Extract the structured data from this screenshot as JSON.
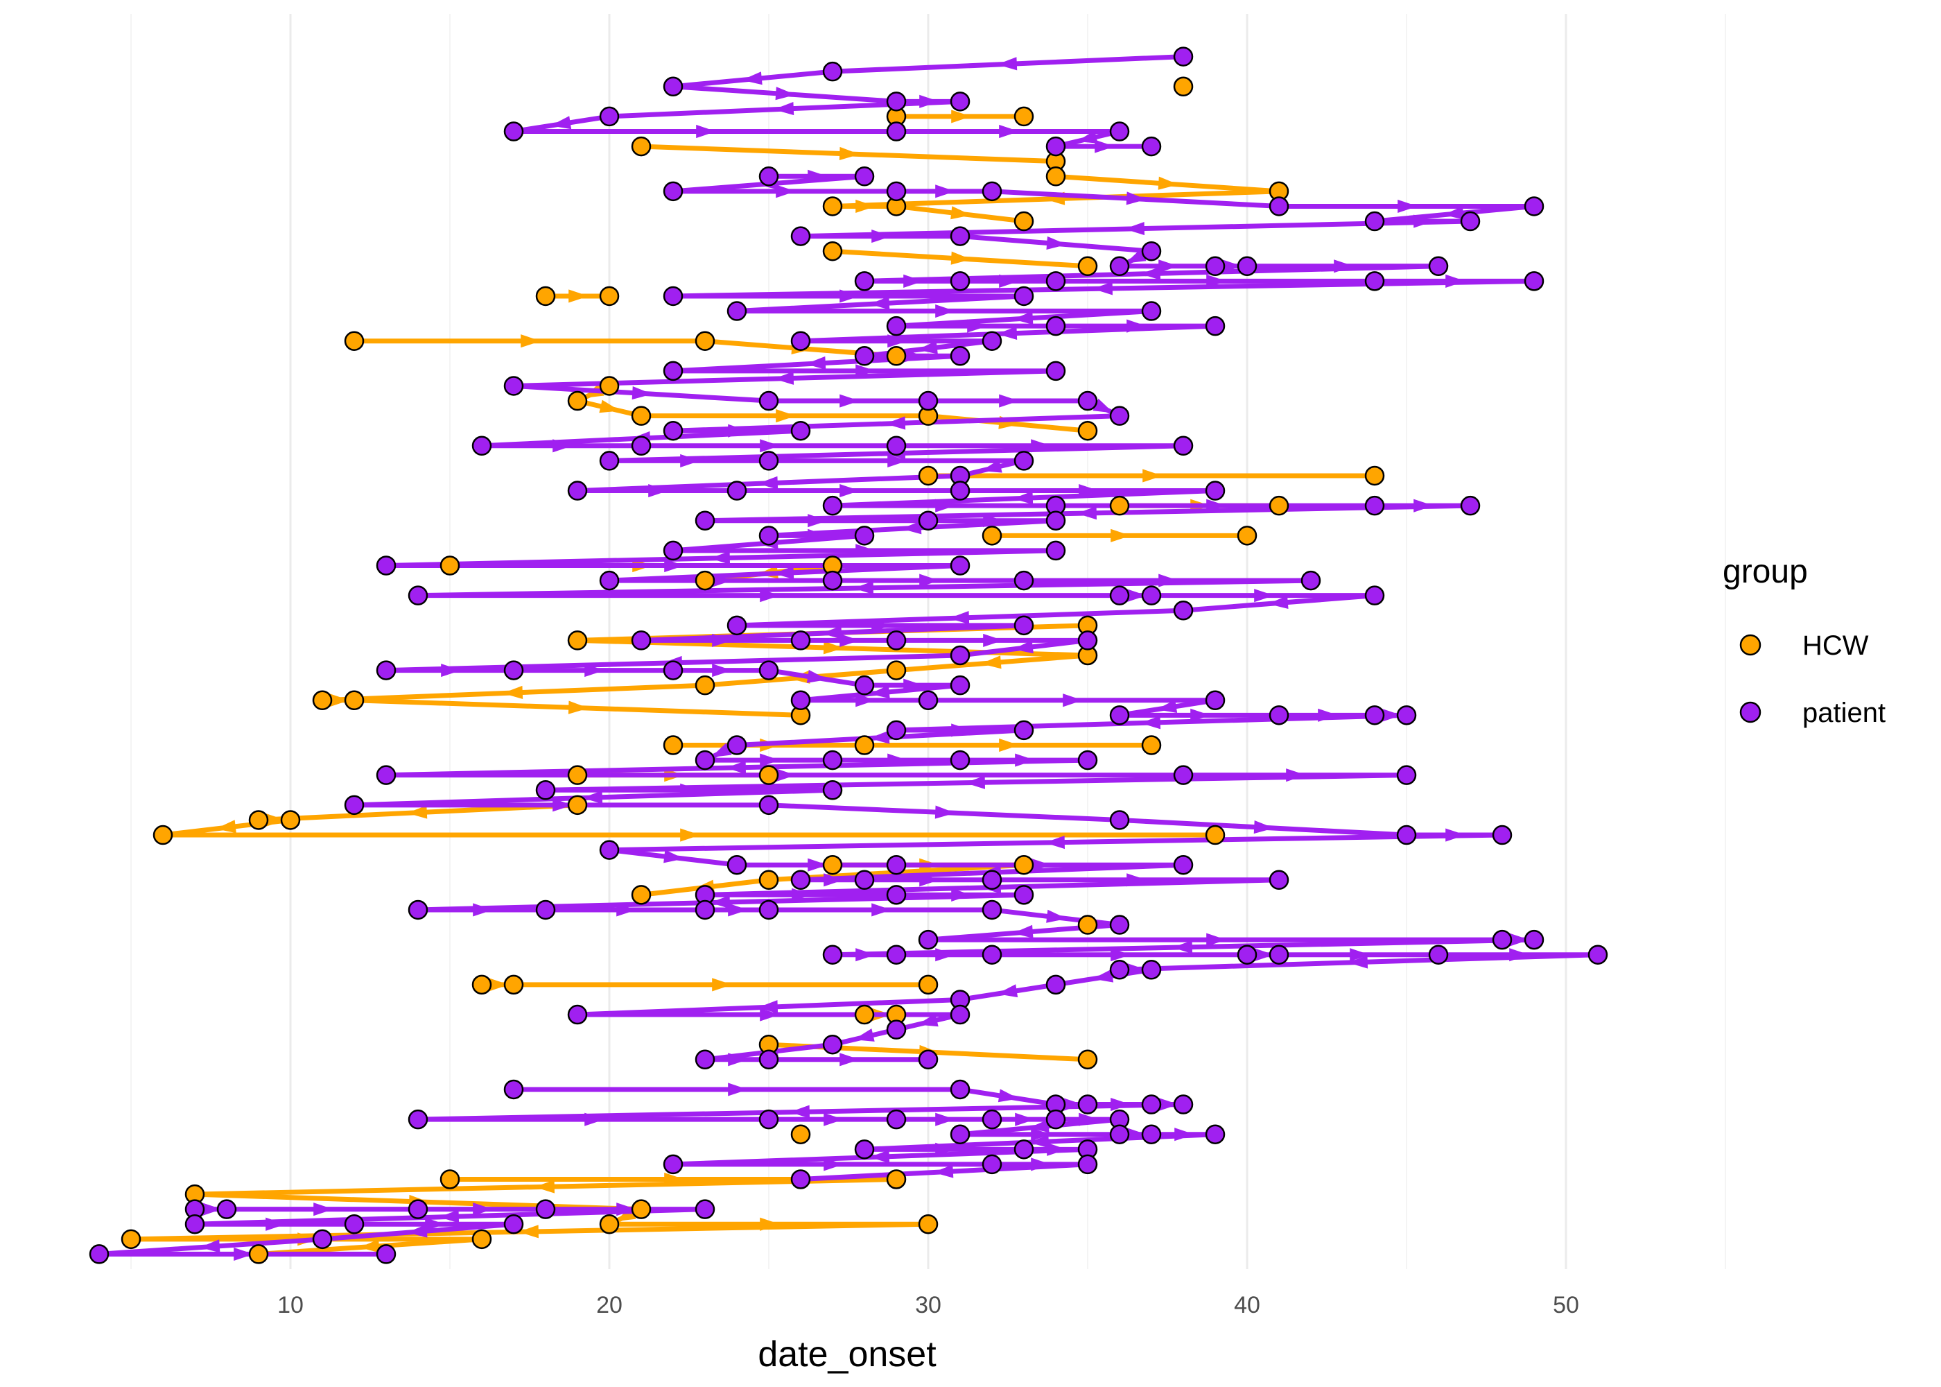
{
  "chart_data": {
    "type": "scatter",
    "title": "",
    "xlabel": "date_onset",
    "ylabel": "",
    "xlim": [
      3.5,
      53.5
    ],
    "x_ticks": [
      10,
      20,
      30,
      40,
      50
    ],
    "grid": true,
    "legend": {
      "title": "group",
      "placement": "right",
      "entries": [
        {
          "label": "HCW",
          "color": "#FFA500"
        },
        {
          "label": "patient",
          "color": "#A020F0"
        }
      ]
    },
    "colors": {
      "HCW": "#FFA500",
      "patient": "#A020F0"
    },
    "series": [
      {
        "name": "HCW",
        "points": [
          [
            38,
            3
          ],
          [
            29,
            5
          ],
          [
            33,
            5
          ],
          [
            21,
            7
          ],
          [
            34,
            8
          ],
          [
            34,
            9
          ],
          [
            41,
            10
          ],
          [
            29,
            11
          ],
          [
            27,
            11
          ],
          [
            33,
            12
          ],
          [
            27,
            14
          ],
          [
            35,
            15
          ],
          [
            20,
            17
          ],
          [
            18,
            17
          ],
          [
            12,
            20
          ],
          [
            23,
            20
          ],
          [
            29,
            21
          ],
          [
            20,
            23
          ],
          [
            19,
            24
          ],
          [
            30,
            25
          ],
          [
            21,
            25
          ],
          [
            35,
            26
          ],
          [
            30,
            29
          ],
          [
            44,
            29
          ],
          [
            36,
            31
          ],
          [
            41,
            31
          ],
          [
            32,
            33
          ],
          [
            40,
            33
          ],
          [
            27,
            35
          ],
          [
            15,
            35
          ],
          [
            23,
            36
          ],
          [
            35,
            39
          ],
          [
            19,
            40
          ],
          [
            35,
            41
          ],
          [
            29,
            42
          ],
          [
            23,
            43
          ],
          [
            11,
            44
          ],
          [
            12,
            44
          ],
          [
            26,
            45
          ],
          [
            22,
            47
          ],
          [
            28,
            47
          ],
          [
            37,
            47
          ],
          [
            19,
            49
          ],
          [
            25,
            49
          ],
          [
            19,
            51
          ],
          [
            6,
            53
          ],
          [
            9,
            52
          ],
          [
            10,
            52
          ],
          [
            39,
            53
          ],
          [
            27,
            55
          ],
          [
            25,
            56
          ],
          [
            21,
            57
          ],
          [
            33,
            55
          ],
          [
            35,
            59
          ],
          [
            16,
            63
          ],
          [
            17,
            63
          ],
          [
            30,
            63
          ],
          [
            28,
            65
          ],
          [
            29,
            65
          ],
          [
            25,
            67
          ],
          [
            35,
            68
          ],
          [
            26,
            73
          ],
          [
            7,
            77
          ],
          [
            15,
            76
          ],
          [
            29,
            76
          ],
          [
            21,
            78
          ],
          [
            20,
            79
          ],
          [
            30,
            79
          ],
          [
            5,
            80
          ],
          [
            16,
            80
          ],
          [
            9,
            81
          ]
        ]
      },
      {
        "name": "patient",
        "points": [
          [
            22,
            3
          ],
          [
            27,
            2
          ],
          [
            38,
            1
          ],
          [
            20,
            5
          ],
          [
            29,
            6
          ],
          [
            31,
            4
          ],
          [
            17,
            6
          ],
          [
            29,
            4
          ],
          [
            36,
            6
          ],
          [
            37,
            7
          ],
          [
            34,
            7
          ],
          [
            25,
            9
          ],
          [
            28,
            9
          ],
          [
            22,
            10
          ],
          [
            29,
            10
          ],
          [
            32,
            10
          ],
          [
            41,
            11
          ],
          [
            44,
            12
          ],
          [
            49,
            11
          ],
          [
            47,
            12
          ],
          [
            37,
            14
          ],
          [
            31,
            13
          ],
          [
            26,
            13
          ],
          [
            39,
            15
          ],
          [
            36,
            15
          ],
          [
            34,
            16
          ],
          [
            46,
            15
          ],
          [
            28,
            16
          ],
          [
            31,
            16
          ],
          [
            22,
            17
          ],
          [
            24,
            18
          ],
          [
            33,
            17
          ],
          [
            37,
            18
          ],
          [
            29,
            19
          ],
          [
            34,
            19
          ],
          [
            39,
            19
          ],
          [
            26,
            20
          ],
          [
            31,
            21
          ],
          [
            28,
            21
          ],
          [
            32,
            20
          ],
          [
            49,
            16
          ],
          [
            44,
            16
          ],
          [
            40,
            15
          ],
          [
            17,
            23
          ],
          [
            22,
            22
          ],
          [
            25,
            24
          ],
          [
            30,
            24
          ],
          [
            34,
            22
          ],
          [
            35,
            24
          ],
          [
            36,
            25
          ],
          [
            22,
            26
          ],
          [
            16,
            27
          ],
          [
            21,
            27
          ],
          [
            25,
            28
          ],
          [
            26,
            26
          ],
          [
            29,
            27
          ],
          [
            33,
            28
          ],
          [
            38,
            27
          ],
          [
            20,
            28
          ],
          [
            31,
            29
          ],
          [
            19,
            30
          ],
          [
            24,
            30
          ],
          [
            27,
            31
          ],
          [
            31,
            30
          ],
          [
            34,
            31
          ],
          [
            39,
            30
          ],
          [
            44,
            31
          ],
          [
            47,
            31
          ],
          [
            23,
            32
          ],
          [
            28,
            33
          ],
          [
            30,
            32
          ],
          [
            34,
            32
          ],
          [
            22,
            34
          ],
          [
            25,
            33
          ],
          [
            31,
            35
          ],
          [
            34,
            34
          ],
          [
            13,
            35
          ],
          [
            20,
            36
          ],
          [
            14,
            37
          ],
          [
            36,
            37
          ],
          [
            27,
            36
          ],
          [
            33,
            36
          ],
          [
            38,
            38
          ],
          [
            44,
            37
          ],
          [
            42,
            36
          ],
          [
            37,
            37
          ],
          [
            24,
            39
          ],
          [
            29,
            40
          ],
          [
            33,
            39
          ],
          [
            26,
            40
          ],
          [
            21,
            40
          ],
          [
            31,
            41
          ],
          [
            35,
            40
          ],
          [
            13,
            42
          ],
          [
            17,
            42
          ],
          [
            22,
            42
          ],
          [
            25,
            42
          ],
          [
            31,
            43
          ],
          [
            28,
            43
          ],
          [
            30,
            44
          ],
          [
            26,
            44
          ],
          [
            39,
            44
          ],
          [
            41,
            45
          ],
          [
            44,
            45
          ],
          [
            45,
            45
          ],
          [
            33,
            46
          ],
          [
            36,
            45
          ],
          [
            29,
            46
          ],
          [
            24,
            47
          ],
          [
            23,
            48
          ],
          [
            27,
            48
          ],
          [
            31,
            48
          ],
          [
            35,
            48
          ],
          [
            38,
            49
          ],
          [
            45,
            49
          ],
          [
            13,
            49
          ],
          [
            27,
            50
          ],
          [
            25,
            51
          ],
          [
            12,
            51
          ],
          [
            18,
            50
          ],
          [
            36,
            52
          ],
          [
            45,
            53
          ],
          [
            48,
            53
          ],
          [
            20,
            54
          ],
          [
            29,
            55
          ],
          [
            24,
            55
          ],
          [
            23,
            57
          ],
          [
            26,
            56
          ],
          [
            28,
            56
          ],
          [
            32,
            56
          ],
          [
            38,
            55
          ],
          [
            41,
            56
          ],
          [
            33,
            57
          ],
          [
            23,
            58
          ],
          [
            29,
            57
          ],
          [
            14,
            58
          ],
          [
            18,
            58
          ],
          [
            25,
            58
          ],
          [
            32,
            58
          ],
          [
            36,
            59
          ],
          [
            30,
            60
          ],
          [
            27,
            61
          ],
          [
            29,
            61
          ],
          [
            32,
            61
          ],
          [
            40,
            61
          ],
          [
            41,
            61
          ],
          [
            46,
            61
          ],
          [
            48,
            60
          ],
          [
            49,
            60
          ],
          [
            51,
            61
          ],
          [
            36,
            62
          ],
          [
            37,
            62
          ],
          [
            34,
            63
          ],
          [
            19,
            65
          ],
          [
            31,
            64
          ],
          [
            31,
            65
          ],
          [
            29,
            66
          ],
          [
            27,
            67
          ],
          [
            23,
            68
          ],
          [
            25,
            68
          ],
          [
            30,
            68
          ],
          [
            17,
            70
          ],
          [
            31,
            70
          ],
          [
            34,
            71
          ],
          [
            35,
            71
          ],
          [
            36,
            72
          ],
          [
            37,
            71
          ],
          [
            38,
            71
          ],
          [
            29,
            72
          ],
          [
            32,
            72
          ],
          [
            34,
            72
          ],
          [
            36,
            73
          ],
          [
            14,
            72
          ],
          [
            25,
            72
          ],
          [
            31,
            73
          ],
          [
            33,
            74
          ],
          [
            35,
            74
          ],
          [
            37,
            73
          ],
          [
            39,
            73
          ],
          [
            28,
            74
          ],
          [
            22,
            75
          ],
          [
            26,
            76
          ],
          [
            35,
            75
          ],
          [
            32,
            75
          ],
          [
            7,
            78
          ],
          [
            8,
            78
          ],
          [
            14,
            78
          ],
          [
            18,
            78
          ],
          [
            23,
            78
          ],
          [
            12,
            79
          ],
          [
            17,
            79
          ],
          [
            11,
            80
          ],
          [
            13,
            81
          ],
          [
            4,
            81
          ],
          [
            7,
            79
          ]
        ]
      }
    ]
  }
}
